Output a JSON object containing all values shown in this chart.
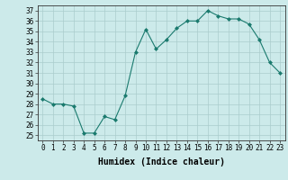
{
  "x": [
    0,
    1,
    2,
    3,
    4,
    5,
    6,
    7,
    8,
    9,
    10,
    11,
    12,
    13,
    14,
    15,
    16,
    17,
    18,
    19,
    20,
    21,
    22,
    23
  ],
  "y": [
    28.5,
    28.0,
    28.0,
    27.8,
    25.2,
    25.2,
    26.8,
    26.5,
    28.8,
    33.0,
    35.2,
    33.3,
    34.2,
    35.3,
    36.0,
    36.0,
    37.0,
    36.5,
    36.2,
    36.2,
    35.7,
    34.2,
    32.0,
    31.0
  ],
  "line_color": "#1a7a6e",
  "marker": "D",
  "marker_size": 2,
  "bg_color": "#cceaea",
  "grid_color": "#aacccc",
  "xlabel": "Humidex (Indice chaleur)",
  "ylabel": "",
  "xlim": [
    -0.5,
    23.5
  ],
  "ylim": [
    24.5,
    37.5
  ],
  "yticks": [
    25,
    26,
    27,
    28,
    29,
    30,
    31,
    32,
    33,
    34,
    35,
    36,
    37
  ],
  "xticks": [
    0,
    1,
    2,
    3,
    4,
    5,
    6,
    7,
    8,
    9,
    10,
    11,
    12,
    13,
    14,
    15,
    16,
    17,
    18,
    19,
    20,
    21,
    22,
    23
  ],
  "tick_label_fontsize": 5.5,
  "xlabel_fontsize": 7,
  "axis_color": "#333333"
}
